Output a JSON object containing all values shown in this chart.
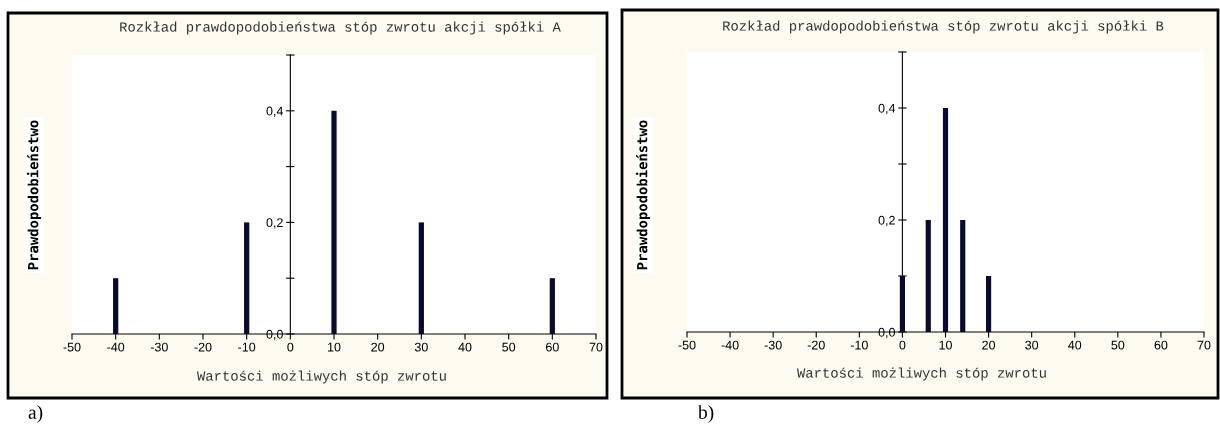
{
  "chart_data": [
    {
      "type": "bar",
      "title": "Rozkład prawdopodobieństwa stóp zwrotu akcji spółki A",
      "xlabel": "Wartości możliwych stóp zwrotu",
      "ylabel": "Prawdopodobieństwo",
      "x": [
        -40,
        -10,
        10,
        30,
        60
      ],
      "values": [
        0.1,
        0.2,
        0.4,
        0.2,
        0.1
      ],
      "color": "#0a0a30",
      "xlim": [
        -50,
        70
      ],
      "xticks": [
        -50,
        -40,
        -30,
        -20,
        -10,
        0,
        10,
        20,
        30,
        40,
        50,
        60,
        70
      ],
      "ylim": [
        0,
        0.5
      ],
      "yticks": [
        {
          "value": 0,
          "label": "0,0"
        },
        {
          "value": 0.1,
          "label": null
        },
        {
          "value": 0.2,
          "label": "0,2"
        },
        {
          "value": 0.3,
          "label": null
        },
        {
          "value": 0.4,
          "label": "0,4"
        },
        {
          "value": 0.5,
          "label": null
        }
      ],
      "grid": false,
      "legend": false,
      "annotations": [
        "a)"
      ]
    },
    {
      "type": "bar",
      "title": "Rozkład prawdopodobieństwa stóp zwrotu akcji spółki B",
      "xlabel": "Wartości możliwych stóp zwrotu",
      "ylabel": "Prawdopodobieństwo",
      "x": [
        0,
        6,
        10,
        14,
        20
      ],
      "values": [
        0.1,
        0.2,
        0.4,
        0.2,
        0.1
      ],
      "color": "#0a0a30",
      "xlim": [
        -50,
        70
      ],
      "xticks": [
        -50,
        -40,
        -30,
        -20,
        -10,
        0,
        10,
        20,
        30,
        40,
        50,
        60,
        70
      ],
      "ylim": [
        0,
        0.5
      ],
      "yticks": [
        {
          "value": 0,
          "label": "0,0"
        },
        {
          "value": 0.1,
          "label": null
        },
        {
          "value": 0.2,
          "label": "0,2"
        },
        {
          "value": 0.3,
          "label": null
        },
        {
          "value": 0.4,
          "label": "0,4"
        },
        {
          "value": 0.5,
          "label": null
        }
      ],
      "grid": false,
      "legend": false,
      "annotations": [
        "b)"
      ]
    }
  ]
}
